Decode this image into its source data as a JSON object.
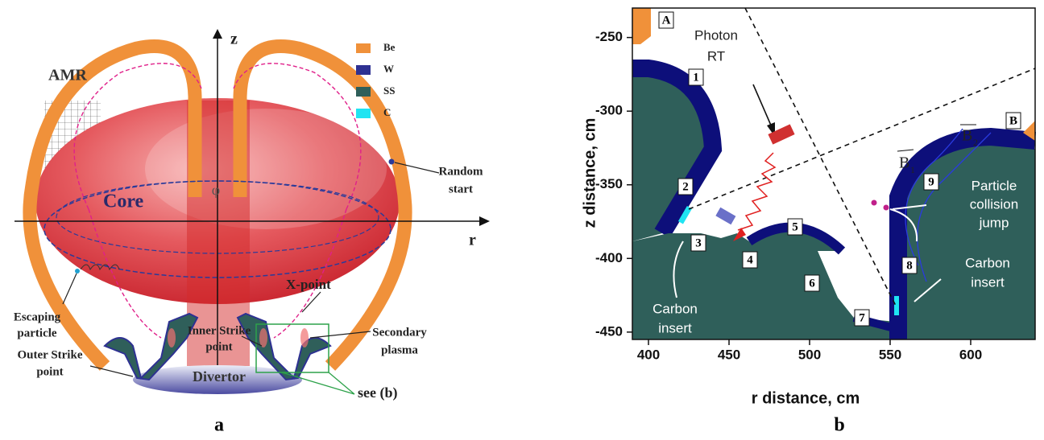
{
  "panel_a": {
    "label": "a",
    "axis_labels": {
      "z": "z",
      "r": "r",
      "phi": "φ"
    },
    "legend": [
      {
        "name": "Be",
        "color": "#f0913a"
      },
      {
        "name": "W",
        "color": "#2e3192"
      },
      {
        "name": "SS",
        "color": "#2f5f5a"
      },
      {
        "name": "C",
        "color": "#1fe4f2"
      }
    ],
    "annotations": {
      "amr": "AMR",
      "core": "Core",
      "random_start": [
        "Random",
        "start"
      ],
      "escaping_particle": [
        "Escaping",
        "particle"
      ],
      "x_point": "X-point",
      "inner_strike_point": [
        "Inner Strike",
        "point"
      ],
      "secondary_plasma": [
        "Secondary",
        "plasma"
      ],
      "outer_strike_point": [
        "Outer Strike",
        "point"
      ],
      "divertor": "Divertor",
      "see_b": "see (b)"
    }
  },
  "panel_b": {
    "label": "b",
    "x_label": "r distance, cm",
    "y_label": "z distance, cm",
    "xlim": [
      390,
      640
    ],
    "ylim": [
      -455,
      -230
    ],
    "xticks": [
      400,
      450,
      500,
      550,
      600
    ],
    "yticks": [
      -250,
      -300,
      -350,
      -400,
      -450
    ],
    "annotations": {
      "photon_rt": [
        "Photon",
        "RT"
      ],
      "carbon_insert_left": [
        "Carbon",
        "insert"
      ],
      "carbon_insert_right": [
        "Carbon",
        "insert"
      ],
      "particle_collision_jump": [
        "Particle",
        "collision",
        "jump"
      ],
      "b1": "B",
      "b1_sub": "1",
      "b2": "B",
      "b2_sub": "2"
    },
    "region_labels": [
      "A",
      "B"
    ],
    "segment_numbers": [
      "1",
      "2",
      "3",
      "4",
      "5",
      "6",
      "7",
      "8",
      "9"
    ]
  }
}
